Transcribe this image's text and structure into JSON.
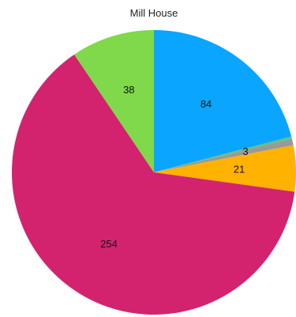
{
  "chart_data": {
    "type": "pie",
    "title": "Mill House",
    "start_angle_deg": 0,
    "direction": "clockwise",
    "slices": [
      {
        "label": "84",
        "value": 84,
        "color": "#0aa5ff"
      },
      {
        "label": "",
        "value": 1,
        "color": "#5cc47a"
      },
      {
        "label": "3",
        "value": 3,
        "color": "#999999"
      },
      {
        "label": "21",
        "value": 21,
        "color": "#ffb300"
      },
      {
        "label": "254",
        "value": 254,
        "color": "#d3236e"
      },
      {
        "label": "38",
        "value": 38,
        "color": "#7fd94a"
      }
    ]
  }
}
